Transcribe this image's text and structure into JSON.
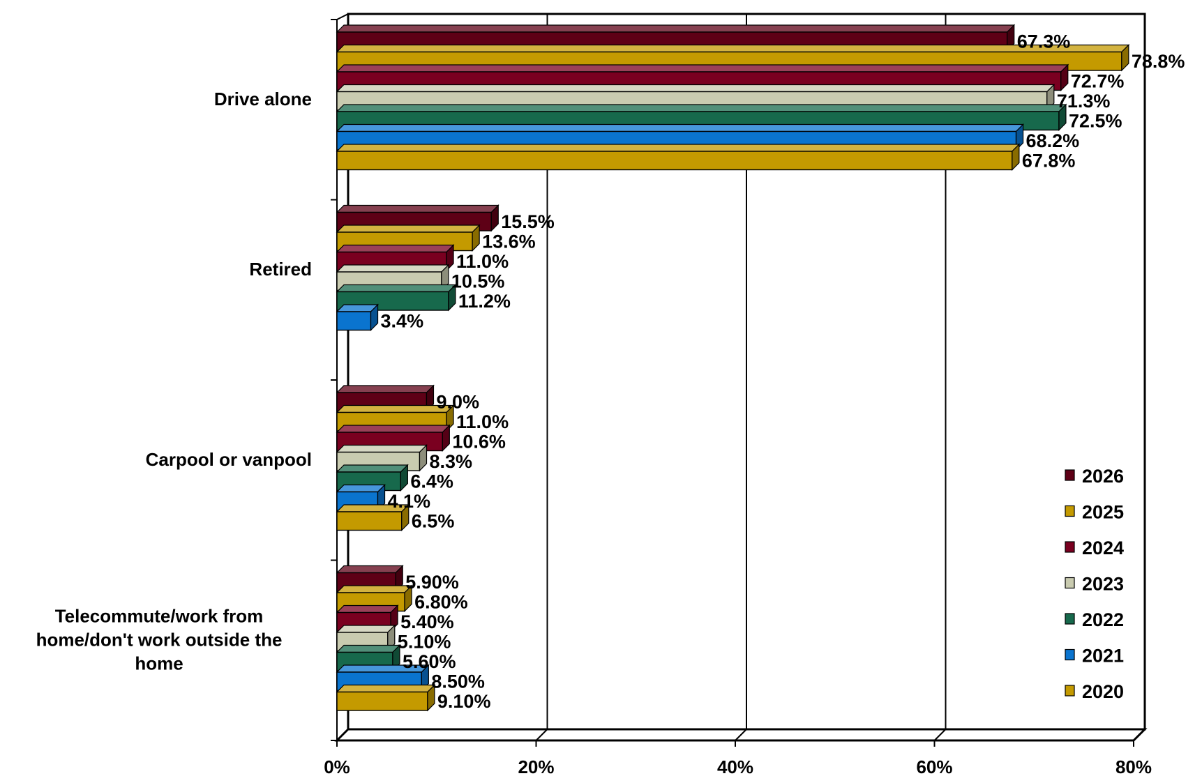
{
  "chart_data": {
    "type": "bar",
    "orientation": "horizontal",
    "style": "3d",
    "categories": [
      "Drive alone",
      "Retired",
      "Carpool or vanpool",
      "Telecommute/work from home/don't work outside the home"
    ],
    "category_lines": [
      [
        "Drive alone"
      ],
      [
        "Retired"
      ],
      [
        "Carpool or vanpool"
      ],
      [
        "Telecommute/work from",
        "home/don't work outside the",
        "home"
      ]
    ],
    "series": [
      {
        "name": "2026",
        "color": "#5e0016",
        "values": [
          67.3,
          15.5,
          9.0,
          5.9
        ],
        "labels": [
          "67.3%",
          "15.5%",
          "9.0%",
          "5.90%"
        ]
      },
      {
        "name": "2025",
        "color": "#c49a00",
        "values": [
          78.8,
          13.6,
          11.0,
          6.8
        ],
        "labels": [
          "78.8%",
          "13.6%",
          "11.0%",
          "6.80%"
        ]
      },
      {
        "name": "2024",
        "color": "#7a0020",
        "values": [
          72.7,
          11.0,
          10.6,
          5.4
        ],
        "labels": [
          "72.7%",
          "11.0%",
          "10.6%",
          "5.40%"
        ]
      },
      {
        "name": "2023",
        "color": "#c9cbb0",
        "values": [
          71.3,
          10.5,
          8.3,
          5.1
        ],
        "labels": [
          "71.3%",
          "10.5%",
          "8.3%",
          "5.10%"
        ]
      },
      {
        "name": "2022",
        "color": "#17694c",
        "values": [
          72.5,
          11.2,
          6.4,
          5.6
        ],
        "labels": [
          "72.5%",
          "11.2%",
          "6.4%",
          "5.60%"
        ]
      },
      {
        "name": "2021",
        "color": "#0a74cf",
        "values": [
          68.2,
          3.4,
          4.1,
          8.5
        ],
        "labels": [
          "68.2%",
          "3.4%",
          "4.1%",
          "8.50%"
        ]
      },
      {
        "name": "2020",
        "color": "#c49a00",
        "values": [
          67.8,
          null,
          6.5,
          9.1
        ],
        "labels": [
          "67.8%",
          null,
          "6.5%",
          "9.10%"
        ]
      }
    ],
    "xlim": [
      0,
      80
    ],
    "xticks": [
      "0%",
      "20%",
      "40%",
      "60%",
      "80%"
    ],
    "title": "",
    "xlabel": "",
    "ylabel": "",
    "legend": {
      "position": "bottom-right",
      "order": [
        "2026",
        "2025",
        "2024",
        "2023",
        "2022",
        "2021",
        "2020"
      ]
    },
    "grid": true
  }
}
